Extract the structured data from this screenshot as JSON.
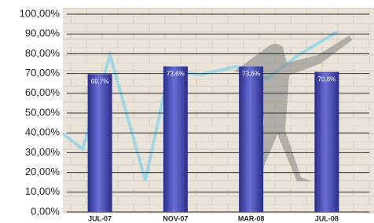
{
  "chart_data": {
    "type": "bar",
    "categories": [
      "JUL-07",
      "NOV-07",
      "MAR-08",
      "JUL-08"
    ],
    "values": [
      69.7,
      73.6,
      73.6,
      70.8
    ],
    "value_labels": [
      "69,7%",
      "73,6%",
      "73,6%",
      "70,8%"
    ],
    "color": "#2a2d86",
    "ylim": [
      0,
      100
    ],
    "yticks": [
      {
        "value": 0,
        "label": "0,00%"
      },
      {
        "value": 10,
        "label": "10,00%"
      },
      {
        "value": 20,
        "label": "20,00%"
      },
      {
        "value": 30,
        "label": "30,00%"
      },
      {
        "value": 40,
        "label": "40,00%"
      },
      {
        "value": 50,
        "label": "50,00%"
      },
      {
        "value": 60,
        "label": "60,00%"
      },
      {
        "value": 70,
        "label": "70,00%"
      },
      {
        "value": 80,
        "label": "80,00%"
      },
      {
        "value": 90,
        "label": "90,00%"
      },
      {
        "value": 100,
        "label": "100,00%"
      }
    ],
    "grid": true
  }
}
